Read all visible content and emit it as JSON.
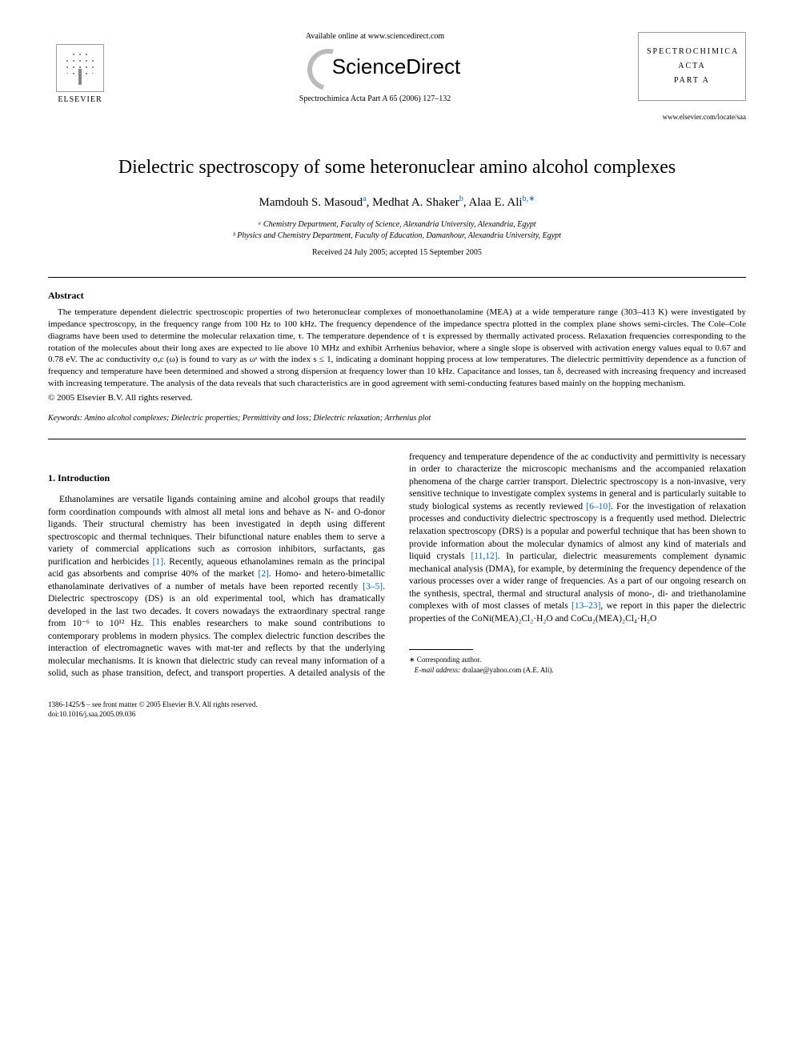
{
  "header": {
    "availability": "Available online at www.sciencedirect.com",
    "sd_name": "ScienceDirect",
    "citation": "Spectrochimica Acta Part A 65 (2006) 127–132",
    "elsevier": "ELSEVIER",
    "journal_box_line1": "SPECTROCHIMICA",
    "journal_box_line2": "ACTA",
    "journal_box_line3": "PART A",
    "journal_url": "www.elsevier.com/locate/saa"
  },
  "article": {
    "title": "Dielectric spectroscopy of some heteronuclear amino alcohol complexes",
    "author1": "Mamdouh S. Masoud",
    "author1_aff": "a",
    "author2": "Medhat A. Shaker",
    "author2_aff": "b",
    "author3": "Alaa E. Ali",
    "author3_aff": "b,∗",
    "affiliation_a": "ᵃ Chemistry Department, Faculty of Science, Alexandria University, Alexandria, Egypt",
    "affiliation_b": "ᵇ Physics and Chemistry Department, Faculty of Education, Damanhour, Alexandria University, Egypt",
    "dates": "Received 24 July 2005; accepted 15 September 2005"
  },
  "abstract": {
    "heading": "Abstract",
    "text": "The temperature dependent dielectric spectroscopic properties of two heteronuclear complexes of monoethanolamine (MEA) at a wide temperature range (303–413 K) were investigated by impedance spectroscopy, in the frequency range from 100 Hz to 100 kHz. The frequency dependence of the impedance spectra plotted in the complex plane shows semi-circles. The Cole–Cole diagrams have been used to determine the molecular relaxation time, τ. The temperature dependence of τ is expressed by thermally activated process. Relaxation frequencies corresponding to the rotation of the molecules about their long axes are expected to lie above 10 MHz and exhibit Arrhenius behavior, where a single slope is observed with activation energy values equal to 0.67 and 0.78 eV. The ac conductivity σₐc (ω) is found to vary as ωˢ with the index s ≤ 1, indicating a dominant hopping process at low temperatures. The dielectric permittivity dependence as a function of frequency and temperature have been determined and showed a strong dispersion at frequency lower than 10 kHz. Capacitance and losses, tan δ, decreased with increasing frequency and increased with increasing temperature. The analysis of the data reveals that such characteristics are in good agreement with semi-conducting features based mainly on the hopping mechanism.",
    "copyright": "© 2005 Elsevier B.V. All rights reserved."
  },
  "keywords": {
    "label": "Keywords:",
    "text": "Amino alcohol complexes; Dielectric properties; Permittivity and loss; Dielectric relaxation; Arrhenius plot"
  },
  "intro": {
    "heading": "1.  Introduction",
    "p1a": "Ethanolamines are versatile ligands containing amine and alcohol groups that readily form coordination compounds with almost all metal ions and behave as N- and O-donor ligands. Their structural chemistry has been investigated in depth using different spectroscopic and thermal techniques. Their bifunctional nature enables them to serve a variety of commercial applications such as corrosion inhibitors, surfactants, gas purification and herbicides ",
    "ref1": "[1]",
    "p1b": ". Recently, aqueous ethanolamines remain as the principal acid gas absorbents and comprise 40% of the market ",
    "ref2": "[2]",
    "p1c": ". Homo- and hetero-bimetallic ethanolaminate derivatives of a number of metals have been reported recently ",
    "ref3": "[3–5]",
    "p1d": ". Dielectric spectroscopy (DS) is an old experimental tool, which has dramatically developed in the last two decades. It covers nowadays the extraordinary spectral range from 10⁻⁶ to 10¹² Hz. This enables researchers to make sound contributions to contemporary problems in modern physics. The complex dielectric function describes the interaction of electromagnetic waves with mat-",
    "p2a": "ter and reflects by that the underlying molecular mechanisms. It is known that dielectric study can reveal many information of a solid, such as phase transition, defect, and transport properties. A detailed analysis of the frequency and temperature dependence of the ac conductivity and permittivity is necessary in order to characterize the microscopic mechanisms and the accompanied relaxation phenomena of the charge carrier transport. Dielectric spectroscopy is a non-invasive, very sensitive technique to investigate complex systems in general and is particularly suitable to study biological systems as recently reviewed ",
    "ref4": "[6–10]",
    "p2b": ". For the investigation of relaxation processes and conductivity dielectric spectroscopy is a frequently used method. Dielectric relaxation spectroscopy (DRS) is a popular and powerful technique that has been shown to provide information about the molecular dynamics of almost any kind of materials and liquid crystals ",
    "ref5": "[11,12]",
    "p2c": ". In particular, dielectric measurements complement dynamic mechanical analysis (DMA), for example, by determining the frequency dependence of the various processes over a wider range of frequencies. As a part of our ongoing research on the synthesis, spectral, thermal and structural analysis of mono-, di- and triethanolamine complexes with of most classes of metals ",
    "ref6": "[13–23]",
    "p2d": ", we report in this paper the dielectric properties of the CoNi(MEA)₂Cl₂·H₂O and CoCu₂(MEA)₂Cl₄·H₂O"
  },
  "footnote": {
    "corr": "∗ Corresponding author.",
    "email_label": "E-mail address:",
    "email": "dralaae@yahoo.com (A.E. Ali)."
  },
  "footer": {
    "line1": "1386-1425/$ – see front matter © 2005 Elsevier B.V. All rights reserved.",
    "line2": "doi:10.1016/j.saa.2005.09.036"
  }
}
